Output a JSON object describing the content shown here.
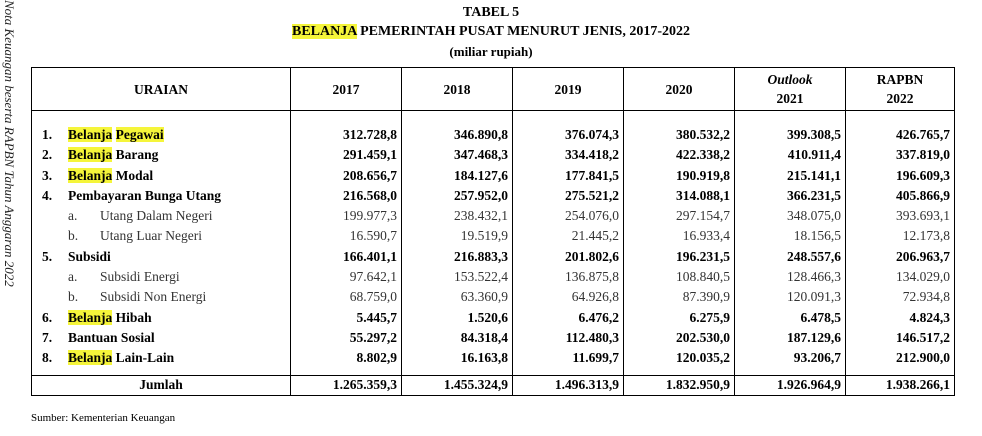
{
  "side_text": "Nota Keuangan beserta RAPBN Tahun Anggaran 2022",
  "title_line1": "TABEL 5",
  "title_highlight": "BELANJA",
  "title_rest": " PEMERINTAH PUSAT MENURUT JENIS, 2017-2022",
  "unit": "(miliar rupiah)",
  "headers": {
    "uraian": "URAIAN",
    "y2017": "2017",
    "y2018": "2018",
    "y2019": "2019",
    "y2020": "2020",
    "outlook_label": "Outlook",
    "outlook_year": "2021",
    "rapbn_label": "RAPBN",
    "rapbn_year": "2022"
  },
  "rows": [
    {
      "no": "1.",
      "hl": "Belanja",
      "hl2": "Pegawai",
      "label": "",
      "values": [
        "312.728,8",
        "346.890,8",
        "376.074,3",
        "380.532,2",
        "399.308,5",
        "426.765,7"
      ]
    },
    {
      "no": "2.",
      "hl": "Belanja",
      "label": " Barang",
      "values": [
        "291.459,1",
        "347.468,3",
        "334.418,2",
        "422.338,2",
        "410.911,4",
        "337.819,0"
      ]
    },
    {
      "no": "3.",
      "hl": "Belanja",
      "label": " Modal",
      "values": [
        "208.656,7",
        "184.127,6",
        "177.841,5",
        "190.919,8",
        "215.141,1",
        "196.609,3"
      ]
    },
    {
      "no": "4.",
      "label": "Pembayaran Bunga Utang",
      "values": [
        "216.568,0",
        "257.952,0",
        "275.521,2",
        "314.088,1",
        "366.231,5",
        "405.866,9"
      ]
    },
    {
      "sub": "a.",
      "label": "Utang Dalam Negeri",
      "values": [
        "199.977,3",
        "238.432,1",
        "254.076,0",
        "297.154,7",
        "348.075,0",
        "393.693,1"
      ]
    },
    {
      "sub": "b.",
      "label": "Utang Luar Negeri",
      "values": [
        "16.590,7",
        "19.519,9",
        "21.445,2",
        "16.933,4",
        "18.156,5",
        "12.173,8"
      ]
    },
    {
      "no": "5.",
      "label": "Subsidi",
      "values": [
        "166.401,1",
        "216.883,3",
        "201.802,6",
        "196.231,5",
        "248.557,6",
        "206.963,7"
      ]
    },
    {
      "sub": "a.",
      "label": "Subsidi Energi",
      "values": [
        "97.642,1",
        "153.522,4",
        "136.875,8",
        "108.840,5",
        "128.466,3",
        "134.029,0"
      ]
    },
    {
      "sub": "b.",
      "label": "Subsidi Non Energi",
      "values": [
        "68.759,0",
        "63.360,9",
        "64.926,8",
        "87.390,9",
        "120.091,3",
        "72.934,8"
      ]
    },
    {
      "no": "6.",
      "hl": "Belanja",
      "label": " Hibah",
      "values": [
        "5.445,7",
        "1.520,6",
        "6.476,2",
        "6.275,9",
        "6.478,5",
        "4.824,3"
      ]
    },
    {
      "no": "7.",
      "label": "Bantuan Sosial",
      "values": [
        "55.297,2",
        "84.318,4",
        "112.480,3",
        "202.530,0",
        "187.129,6",
        "146.517,2"
      ]
    },
    {
      "no": "8.",
      "hl": "Belanja",
      "label": " Lain-Lain",
      "values": [
        "8.802,9",
        "16.163,8",
        "11.699,7",
        "120.035,2",
        "93.206,7",
        "212.900,0"
      ]
    }
  ],
  "total": {
    "label": "Jumlah",
    "values": [
      "1.265.359,3",
      "1.455.324,9",
      "1.496.313,9",
      "1.832.950,9",
      "1.926.964,9",
      "1.938.266,1"
    ]
  },
  "source": "Sumber: Kementerian Keuangan"
}
